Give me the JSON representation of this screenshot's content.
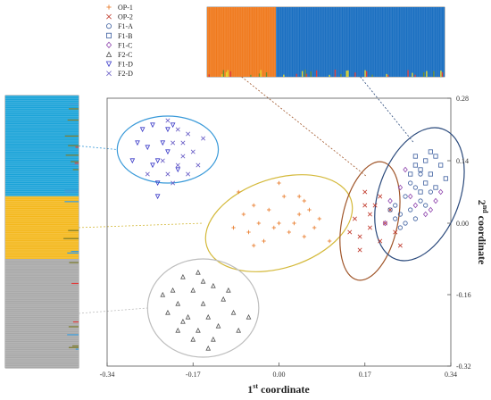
{
  "chart_data": {
    "type": "scatter",
    "title": "",
    "xlabel_main": "1",
    "xlabel_sup": "st",
    "xlabel_rest": " coordinate",
    "ylabel_main": "2",
    "ylabel_sup": "nd",
    "ylabel_rest": " coordinate",
    "xlim": [
      -0.34,
      0.34
    ],
    "ylim": [
      -0.32,
      0.28
    ],
    "x_ticks": [
      -0.34,
      -0.17,
      0.0,
      0.17,
      0.34
    ],
    "x_tick_labels": [
      "-0.34",
      "-0.17",
      "0.00",
      "0.17",
      "0.34"
    ],
    "y_ticks": [
      0.28,
      0.14,
      0.0,
      -0.16,
      -0.32
    ],
    "y_tick_labels": [
      "0.28",
      "0.14",
      "0.00",
      "-0.16",
      "-0.32"
    ],
    "grid": false,
    "legend_position": "top-left, outside plot",
    "series": [
      {
        "name": "OP-1",
        "marker": "+",
        "color": "#e87722",
        "points": [
          [
            -0.08,
            0.07
          ],
          [
            -0.05,
            0.04
          ],
          [
            0.01,
            0.06
          ],
          [
            0.05,
            0.05
          ],
          [
            0.04,
            0.02
          ],
          [
            -0.02,
            0.03
          ],
          [
            0.06,
            0.03
          ],
          [
            -0.04,
            0.0
          ],
          [
            0.0,
            0.0
          ],
          [
            0.03,
            0.0
          ],
          [
            0.07,
            -0.01
          ],
          [
            -0.09,
            -0.01
          ],
          [
            -0.06,
            -0.02
          ],
          [
            0.02,
            -0.02
          ],
          [
            0.05,
            -0.03
          ],
          [
            -0.03,
            -0.04
          ],
          [
            0.08,
            0.01
          ],
          [
            -0.07,
            0.02
          ],
          [
            0.1,
            -0.04
          ],
          [
            0.0,
            0.09
          ],
          [
            -0.01,
            -0.01
          ],
          [
            0.04,
            0.06
          ],
          [
            -0.05,
            -0.05
          ]
        ]
      },
      {
        "name": "OP-2",
        "marker": "x",
        "color": "#c0392b",
        "points": [
          [
            0.17,
            0.07
          ],
          [
            0.2,
            0.06
          ],
          [
            0.22,
            0.03
          ],
          [
            0.18,
            0.02
          ],
          [
            0.15,
            0.01
          ],
          [
            0.21,
            0.0
          ],
          [
            0.18,
            -0.01
          ],
          [
            0.23,
            -0.02
          ],
          [
            0.16,
            -0.03
          ],
          [
            0.2,
            -0.04
          ],
          [
            0.17,
            0.04
          ],
          [
            0.14,
            -0.02
          ],
          [
            0.24,
            -0.05
          ],
          [
            0.19,
            0.04
          ],
          [
            0.16,
            -0.06
          ]
        ]
      },
      {
        "name": "F1-A",
        "marker": "o",
        "color": "#3b5d9e",
        "points": [
          [
            0.23,
            0.04
          ],
          [
            0.25,
            0.06
          ],
          [
            0.27,
            0.08
          ],
          [
            0.24,
            0.02
          ],
          [
            0.26,
            0.03
          ],
          [
            0.28,
            0.05
          ],
          [
            0.25,
            0.0
          ],
          [
            0.27,
            0.01
          ],
          [
            0.29,
            0.04
          ],
          [
            0.26,
            0.09
          ],
          [
            0.23,
            0.01
          ],
          [
            0.28,
            0.11
          ],
          [
            0.3,
            0.07
          ],
          [
            0.24,
            -0.01
          ],
          [
            0.22,
            0.03
          ]
        ]
      },
      {
        "name": "F1-B",
        "marker": "square",
        "color": "#3b5d9e",
        "points": [
          [
            0.27,
            0.15
          ],
          [
            0.29,
            0.14
          ],
          [
            0.31,
            0.15
          ],
          [
            0.28,
            0.12
          ],
          [
            0.3,
            0.11
          ],
          [
            0.32,
            0.13
          ],
          [
            0.29,
            0.09
          ],
          [
            0.31,
            0.08
          ],
          [
            0.26,
            0.11
          ],
          [
            0.28,
            0.07
          ],
          [
            0.3,
            0.16
          ],
          [
            0.33,
            0.1
          ],
          [
            0.27,
            0.13
          ]
        ]
      },
      {
        "name": "F1-C",
        "marker": "diamond",
        "color": "#8e44ad",
        "points": [
          [
            0.25,
            0.12
          ],
          [
            0.26,
            0.06
          ],
          [
            0.24,
            0.08
          ],
          [
            0.29,
            0.02
          ],
          [
            0.31,
            0.05
          ],
          [
            0.22,
            0.05
          ],
          [
            0.27,
            0.04
          ],
          [
            0.3,
            0.03
          ],
          [
            0.32,
            0.07
          ],
          [
            0.21,
            0.0
          ]
        ]
      },
      {
        "name": "F2-C",
        "marker": "triangle",
        "color": "#555555",
        "points": [
          [
            -0.19,
            -0.12
          ],
          [
            -0.16,
            -0.11
          ],
          [
            -0.21,
            -0.15
          ],
          [
            -0.17,
            -0.15
          ],
          [
            -0.13,
            -0.14
          ],
          [
            -0.2,
            -0.18
          ],
          [
            -0.15,
            -0.18
          ],
          [
            -0.11,
            -0.17
          ],
          [
            -0.18,
            -0.21
          ],
          [
            -0.14,
            -0.21
          ],
          [
            -0.09,
            -0.2
          ],
          [
            -0.2,
            -0.24
          ],
          [
            -0.16,
            -0.24
          ],
          [
            -0.12,
            -0.23
          ],
          [
            -0.08,
            -0.24
          ],
          [
            -0.22,
            -0.2
          ],
          [
            -0.17,
            -0.26
          ],
          [
            -0.13,
            -0.26
          ],
          [
            -0.15,
            -0.13
          ],
          [
            -0.1,
            -0.15
          ],
          [
            -0.23,
            -0.16
          ],
          [
            -0.19,
            -0.22
          ],
          [
            -0.06,
            -0.21
          ],
          [
            -0.14,
            -0.28
          ]
        ]
      },
      {
        "name": "F1-D",
        "marker": "triangle-down",
        "color": "#3a3ac8",
        "points": [
          [
            -0.27,
            0.21
          ],
          [
            -0.25,
            0.22
          ],
          [
            -0.23,
            0.18
          ],
          [
            -0.26,
            0.17
          ],
          [
            -0.22,
            0.16
          ],
          [
            -0.24,
            0.14
          ],
          [
            -0.28,
            0.18
          ],
          [
            -0.2,
            0.12
          ],
          [
            -0.24,
            0.09
          ],
          [
            -0.21,
            0.22
          ],
          [
            -0.29,
            0.14
          ],
          [
            -0.25,
            0.13
          ],
          [
            -0.22,
            0.21
          ],
          [
            -0.24,
            0.06
          ]
        ]
      },
      {
        "name": "F2-D",
        "marker": "x",
        "color": "#6b5fc7",
        "points": [
          [
            -0.22,
            0.23
          ],
          [
            -0.2,
            0.21
          ],
          [
            -0.18,
            0.2
          ],
          [
            -0.21,
            0.18
          ],
          [
            -0.17,
            0.16
          ],
          [
            -0.19,
            0.15
          ],
          [
            -0.23,
            0.14
          ],
          [
            -0.2,
            0.13
          ],
          [
            -0.16,
            0.13
          ],
          [
            -0.22,
            0.11
          ],
          [
            -0.18,
            0.11
          ],
          [
            -0.21,
            0.09
          ],
          [
            -0.26,
            0.11
          ],
          [
            -0.19,
            0.18
          ],
          [
            -0.15,
            0.19
          ]
        ]
      }
    ],
    "ellipses": [
      {
        "color": "#3a9ad9",
        "center": [
          -0.22,
          0.165
        ],
        "rx": 0.1,
        "ry": 0.075,
        "angle": 0
      },
      {
        "color": "#d4b93a",
        "center": [
          0.0,
          0.0
        ],
        "rx": 0.15,
        "ry": 0.1,
        "angle": -18
      },
      {
        "color": "#bdbdbd",
        "center": [
          -0.15,
          -0.19
        ],
        "rx": 0.11,
        "ry": 0.11,
        "angle": 0
      },
      {
        "color": "#a0562a",
        "center": [
          0.18,
          0.005
        ],
        "rx": 0.055,
        "ry": 0.135,
        "angle": 12
      },
      {
        "color": "#2b4a7c",
        "center": [
          0.278,
          0.065
        ],
        "rx": 0.08,
        "ry": 0.155,
        "angle": 20
      }
    ],
    "structure_top": {
      "clusters": [
        {
          "color": "#f07a1e",
          "share": 0.29
        },
        {
          "color": "#1a6fc1",
          "share": 0.71
        }
      ],
      "accent_colors": [
        "#e3d629",
        "#e03b3b",
        "#6a8e2f"
      ],
      "points_to_ellipses": [
        3,
        4
      ]
    },
    "structure_left": {
      "clusters": [
        {
          "color": "#1aa3d8",
          "share": 0.37
        },
        {
          "color": "#f4b81c",
          "share": 0.23
        },
        {
          "color": "#a8a8a8",
          "share": 0.4
        }
      ],
      "accent_colors": [
        "#3a9ad9",
        "#e03b3b",
        "#7a7a2a"
      ],
      "points_to_ellipses": [
        0,
        1,
        2
      ]
    }
  }
}
